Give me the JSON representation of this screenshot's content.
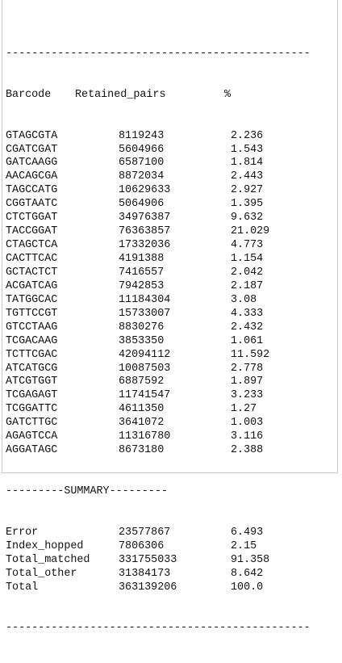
{
  "separator_top": "-----------------------------------------------",
  "header": {
    "barcode": "Barcode",
    "retained_pairs": "Retained_pairs",
    "percent": "%"
  },
  "rows": [
    {
      "barcode": "GTAGCGTA",
      "pairs": "8119243",
      "pct": "2.236"
    },
    {
      "barcode": "CGATCGAT",
      "pairs": "5604966",
      "pct": "1.543"
    },
    {
      "barcode": "GATCAAGG",
      "pairs": "6587100",
      "pct": "1.814"
    },
    {
      "barcode": "AACAGCGA",
      "pairs": "8872034",
      "pct": "2.443"
    },
    {
      "barcode": "TAGCCATG",
      "pairs": "10629633",
      "pct": "2.927"
    },
    {
      "barcode": "CGGTAATC",
      "pairs": "5064906",
      "pct": "1.395"
    },
    {
      "barcode": "CTCTGGAT",
      "pairs": "34976387",
      "pct": "9.632"
    },
    {
      "barcode": "TACCGGAT",
      "pairs": "76363857",
      "pct": "21.029"
    },
    {
      "barcode": "CTAGCTCA",
      "pairs": "17332036",
      "pct": "4.773"
    },
    {
      "barcode": "CACTTCAC",
      "pairs": "4191388",
      "pct": "1.154"
    },
    {
      "barcode": "GCTACTCT",
      "pairs": "7416557",
      "pct": "2.042"
    },
    {
      "barcode": "ACGATCAG",
      "pairs": "7942853",
      "pct": "2.187"
    },
    {
      "barcode": "TATGGCAC",
      "pairs": "11184304",
      "pct": "3.08"
    },
    {
      "barcode": "TGTTCCGT",
      "pairs": "15733007",
      "pct": "4.333"
    },
    {
      "barcode": "GTCCTAAG",
      "pairs": "8830276",
      "pct": "2.432"
    },
    {
      "barcode": "TCGACAAG",
      "pairs": "3853350",
      "pct": "1.061"
    },
    {
      "barcode": "TCTTCGAC",
      "pairs": "42094112",
      "pct": "11.592"
    },
    {
      "barcode": "ATCATGCG",
      "pairs": "10087503",
      "pct": "2.778"
    },
    {
      "barcode": "ATCGTGGT",
      "pairs": "6887592",
      "pct": "1.897"
    },
    {
      "barcode": "TCGAGAGT",
      "pairs": "11741547",
      "pct": "3.233"
    },
    {
      "barcode": "TCGGATTC",
      "pairs": "4611350",
      "pct": "1.27"
    },
    {
      "barcode": "GATCTTGC",
      "pairs": "3641072",
      "pct": "1.003"
    },
    {
      "barcode": "AGAGTCCA",
      "pairs": "11316780",
      "pct": "3.116"
    },
    {
      "barcode": "AGGATAGC",
      "pairs": "8673180",
      "pct": "2.388"
    }
  ],
  "summary_separator": "---------SUMMARY---------",
  "summary": [
    {
      "label": "Error",
      "pairs": "23577867",
      "pct": "6.493"
    },
    {
      "label": "Index_hopped",
      "pairs": "7806306",
      "pct": "2.15"
    },
    {
      "label": "Total_matched",
      "pairs": "331755033",
      "pct": "91.358"
    },
    {
      "label": "Total_other",
      "pairs": "31384173",
      "pct": "8.642"
    },
    {
      "label": "Total",
      "pairs": "363139206",
      "pct": "100.0"
    }
  ],
  "separator_bottom": "-----------------------------------------------"
}
